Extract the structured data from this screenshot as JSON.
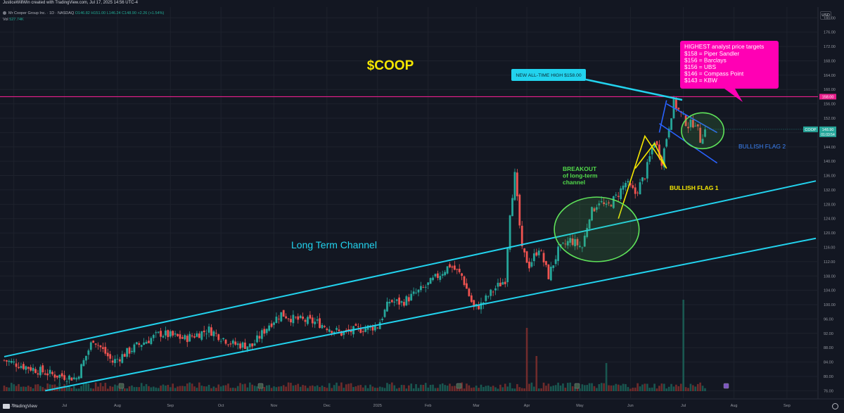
{
  "header": {
    "credit": "JusticeWillWin created with TradingView.com, Jul 17, 2025 14:56 UTC-4",
    "legend_name": "Mr Cooper Group Inc. · 1D · NASDAQ",
    "legend_ohlc": "O146.82 H151.00 L146.24 C148.90 +2.26 (+1.54%)",
    "vol_label": "Vol",
    "vol_value": "527.74K",
    "currency": "USD",
    "brand": "TradingView"
  },
  "price_badges": {
    "ticker": "COOP",
    "last_price": "148.90",
    "countdown": "01:03:54",
    "ath_line": "158.00"
  },
  "colors": {
    "background": "#131722",
    "up": "#26a69a",
    "down": "#ef5350",
    "channel": "#22d3ee",
    "ath_line": "#e91e8c",
    "title": "#f5e700",
    "flag1": "#f5e700",
    "flag2": "#2962ff",
    "circle": "#4caf50",
    "callout": "#ff00b4"
  },
  "chart_data": {
    "type": "candlestick",
    "title": "$COOP",
    "y_axis": {
      "ticks": [
        76,
        80,
        84,
        88,
        92,
        96,
        100,
        104,
        108,
        112,
        116,
        120,
        124,
        128,
        132,
        136,
        140,
        144,
        148,
        152,
        156,
        160,
        164,
        168,
        172,
        176,
        180
      ],
      "ylim": [
        74.5,
        183
      ]
    },
    "x_axis": {
      "labels": [
        "Jun",
        "Jul",
        "Aug",
        "Sep",
        "Oct",
        "Nov",
        "Dec",
        "2025",
        "Feb",
        "Mar",
        "Apr",
        "May",
        "Jun",
        "Jul",
        "Aug",
        "Sep"
      ],
      "label_index": [
        4,
        25,
        47,
        69,
        90,
        112,
        134,
        155,
        176,
        196,
        217,
        239,
        260,
        282,
        303,
        325
      ],
      "last_index": 291,
      "index_range": [
        0,
        337
      ]
    },
    "price_path": {
      "days": [
        0,
        20,
        30,
        37,
        45,
        55,
        65,
        75,
        85,
        95,
        103,
        110,
        115,
        120,
        130,
        140,
        150,
        155,
        160,
        165,
        175,
        185,
        190,
        195,
        198,
        203,
        208,
        210,
        212,
        215,
        218,
        222,
        226,
        230,
        235,
        240,
        243,
        247,
        250,
        254,
        258,
        262,
        266,
        270,
        273,
        276,
        278,
        281,
        284,
        287,
        289,
        291
      ],
      "close": [
        84.5,
        80.5,
        79.5,
        90.5,
        84.0,
        88.5,
        92.0,
        90.5,
        93.0,
        89.0,
        88.5,
        94.5,
        97.5,
        96.0,
        95.0,
        92.0,
        93.5,
        94.0,
        101.0,
        100.5,
        105.0,
        111.0,
        108.0,
        99.0,
        100.0,
        104.0,
        107.0,
        126.0,
        136.0,
        115.0,
        111.0,
        116.0,
        108.0,
        115.0,
        118.0,
        116.0,
        125.0,
        129.0,
        127.0,
        130.0,
        134.0,
        131.0,
        136.0,
        146.0,
        140.0,
        150.0,
        156.5,
        153.0,
        150.0,
        151.0,
        146.0,
        148.9
      ]
    },
    "volume_spikes": [
      {
        "day": 217,
        "value": 9.0
      },
      {
        "day": 282,
        "value": 13.0
      },
      {
        "day": 221,
        "value": 5.0
      },
      {
        "day": 250,
        "value": 4.0
      }
    ],
    "ath": 158.0,
    "last": 148.9,
    "channel": {
      "upper": [
        [
          0,
          85.5
        ],
        [
          337,
          134.5
        ]
      ],
      "lower": [
        [
          17,
          76.0
        ],
        [
          337,
          118.5
        ]
      ]
    },
    "flag1_lines": [
      [
        [
          255,
          124.0
        ],
        [
          266,
          147.0
        ],
        [
          275,
          138.0
        ]
      ],
      [
        [
          262,
          138.0
        ],
        [
          270,
          145.0
        ],
        [
          275,
          138.0
        ]
      ]
    ],
    "flag2_lines": [
      [
        [
          275,
          156.0
        ],
        [
          296,
          148.0
        ]
      ],
      [
        [
          272,
          150.5
        ],
        [
          296,
          139.5
        ]
      ],
      [
        [
          272,
          148.0
        ],
        [
          275,
          157.0
        ]
      ]
    ],
    "circles": [
      {
        "center": [
          246,
          121.0
        ],
        "radius_days": 8,
        "radius_price": 9
      },
      {
        "center": [
          290,
          148.5
        ],
        "radius_days": 4,
        "radius_price": 5
      }
    ],
    "annotations": {
      "title": "$COOP",
      "channel_label": "Long Term Channel",
      "breakout": [
        "BREAKOUT",
        "of long-term",
        "channel"
      ],
      "flag1": "BULLISH FLAG 1",
      "flag2": "BULLISH FLAG 2",
      "ath_callout": "NEW ALL-TIME HIGH $158.00",
      "targets_title": "HIGHEST analyst price targets",
      "targets": [
        "$158 = Piper Sandler",
        "$156 = Barclays",
        "$156 = UBS",
        "$146 = Compass Point",
        "$143 = KBW"
      ]
    }
  }
}
